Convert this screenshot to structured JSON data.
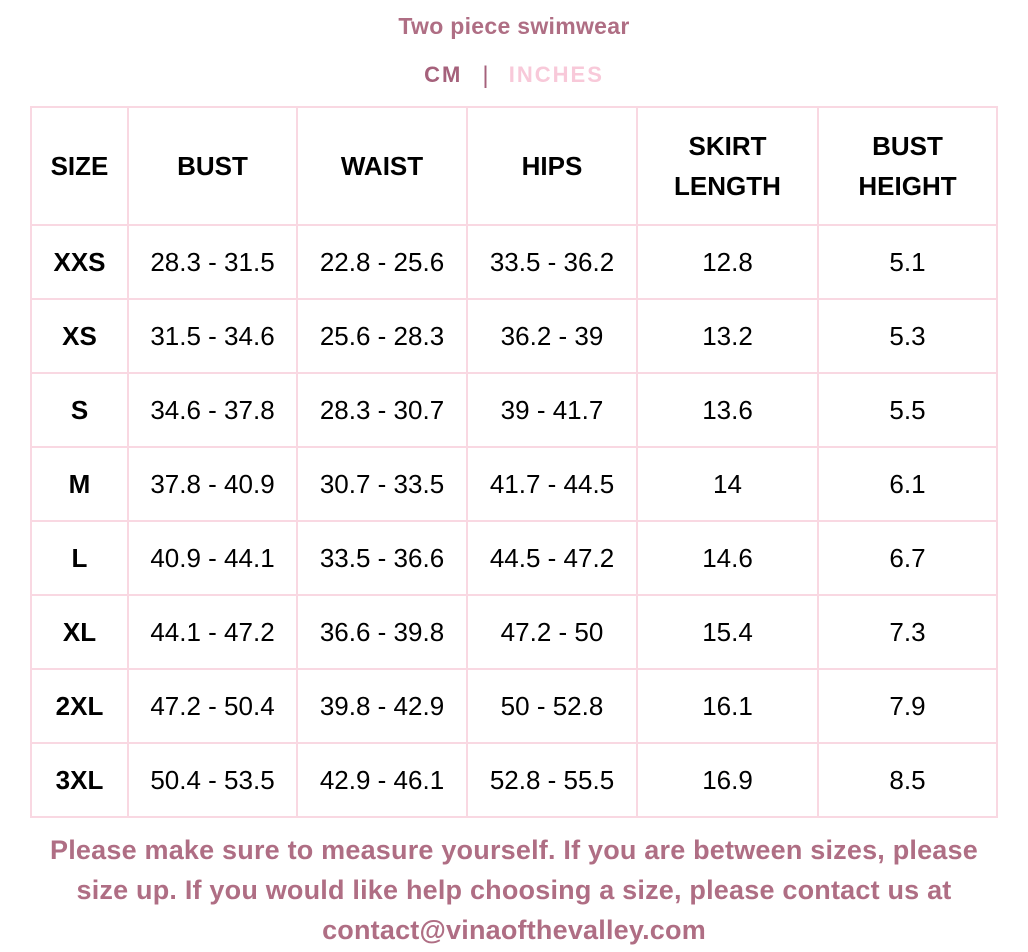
{
  "header": {
    "title": "Two piece swimwear",
    "units": {
      "cm": "CM",
      "separator": "|",
      "inches": "INCHES",
      "selected": "CM"
    }
  },
  "table": {
    "headers": [
      "SIZE",
      "BUST",
      "WAIST",
      "HIPS",
      "SKIRT LENGTH",
      "BUST HEIGHT"
    ],
    "rows": [
      [
        "XXS",
        "28.3 - 31.5",
        "22.8 - 25.6",
        "33.5 - 36.2",
        "12.8",
        "5.1"
      ],
      [
        "XS",
        "31.5 - 34.6",
        "25.6 - 28.3",
        "36.2 - 39",
        "13.2",
        "5.3"
      ],
      [
        "S",
        "34.6 - 37.8",
        "28.3 - 30.7",
        "39 - 41.7",
        "13.6",
        "5.5"
      ],
      [
        "M",
        "37.8 - 40.9",
        "30.7 - 33.5",
        "41.7 - 44.5",
        "14",
        "6.1"
      ],
      [
        "L",
        "40.9 - 44.1",
        "33.5 - 36.6",
        "44.5 - 47.2",
        "14.6",
        "6.7"
      ],
      [
        "XL",
        "44.1 - 47.2",
        "36.6 - 39.8",
        "47.2 - 50",
        "15.4",
        "7.3"
      ],
      [
        "2XL",
        "47.2 - 50.4",
        "39.8 - 42.9",
        "50 - 52.8",
        "16.1",
        "7.9"
      ],
      [
        "3XL",
        "50.4 - 53.5",
        "42.9 - 46.1",
        "52.8 - 55.5",
        "16.9",
        "8.5"
      ]
    ]
  },
  "footer": {
    "lines": [
      "Please make sure to measure yourself. If you are between sizes, please",
      "size up. If you would like help choosing a size, please contact us at",
      "contact@vinaofthevalley.com"
    ],
    "contact_email": "contact@vinaofthevalley.com"
  },
  "colors": {
    "accent_mauve": "#af6e84",
    "unit_selected": "#a5617b",
    "unit_unselected": "#f8c9d9",
    "table_border": "#f9d8e2",
    "table_text": "#000000",
    "background": "#ffffff"
  }
}
